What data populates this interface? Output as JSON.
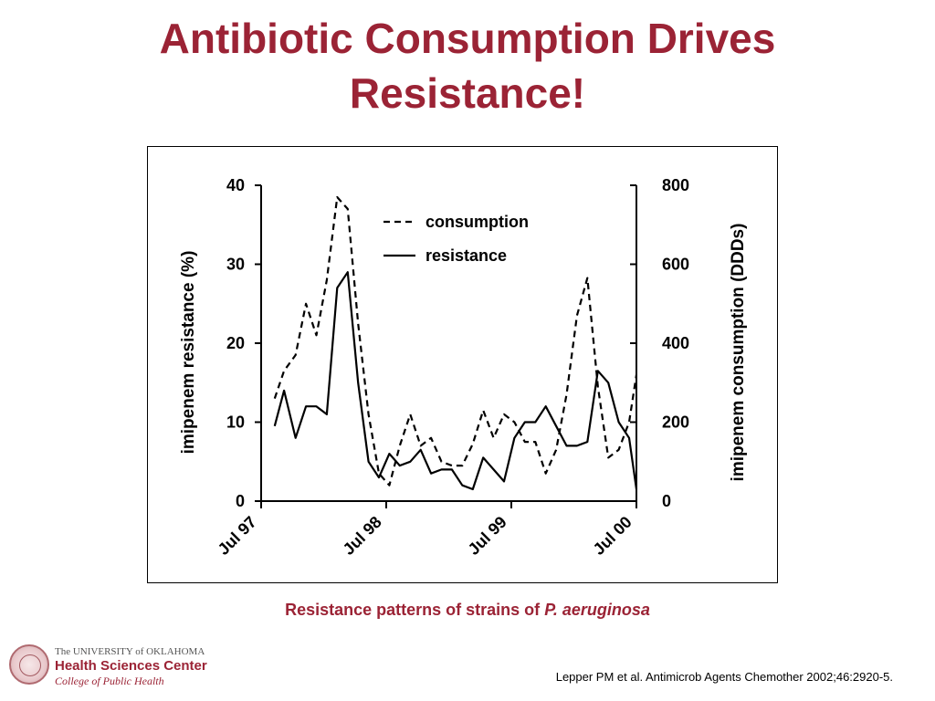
{
  "slide": {
    "title_line1": "Antibiotic Consumption Drives",
    "title_line2": "Resistance!",
    "caption_text": "Resistance patterns of strains of ",
    "caption_italic": "P. aeruginosa",
    "citation": "Lepper PM et al. Antimicrob Agents Chemother 2002;46:2920-5.",
    "title_color": "#9b2335"
  },
  "logo": {
    "line1": "The UNIVERSITY of OKLAHOMA",
    "line2": "Health Sciences Center",
    "line3": "College of Public Health"
  },
  "chart_data": {
    "type": "line",
    "title": "",
    "xlabel": "",
    "ylabel": "imipenem resistance (%)",
    "y2label": "imipenem consumption (DDDs)",
    "x_ticks": [
      "Jul 97",
      "Jul 98",
      "Jul 99",
      "Jul 00"
    ],
    "x_tick_months": [
      0,
      12,
      24,
      36
    ],
    "xlim_months": [
      0,
      36
    ],
    "ylim": [
      0,
      40
    ],
    "y_ticks": [
      0,
      10,
      20,
      30,
      40
    ],
    "y2lim": [
      0,
      800
    ],
    "y2_ticks": [
      0,
      200,
      400,
      600,
      800
    ],
    "grid": false,
    "legend_position": "top-center",
    "series": [
      {
        "name": "consumption",
        "axis": "right",
        "style": "dashed",
        "x": [
          1.3,
          2.2,
          3.3,
          4.3,
          5.3,
          6.3,
          7.3,
          8.3,
          9.3,
          10.3,
          11.3,
          12.3,
          13.3,
          14.3,
          15.3,
          16.3,
          17.3,
          18.3,
          19.3,
          20.3,
          21.3,
          22.3,
          23.3,
          24.3,
          25.3,
          26.3,
          27.3,
          28.3,
          29.3,
          30.3,
          31.3,
          32.3,
          33.3,
          34.3,
          35.3,
          36.0
        ],
        "values": [
          260,
          330,
          370,
          500,
          420,
          560,
          770,
          740,
          450,
          220,
          70,
          40,
          140,
          220,
          140,
          160,
          100,
          90,
          90,
          145,
          230,
          160,
          220,
          200,
          150,
          150,
          70,
          130,
          270,
          470,
          565,
          290,
          110,
          130,
          200,
          320
        ]
      },
      {
        "name": "resistance",
        "axis": "left",
        "style": "solid",
        "x": [
          1.3,
          2.2,
          3.3,
          4.3,
          5.3,
          6.3,
          7.3,
          8.3,
          9.3,
          10.3,
          11.3,
          12.3,
          13.3,
          14.3,
          15.3,
          16.3,
          17.3,
          18.3,
          19.3,
          20.3,
          21.3,
          22.3,
          23.3,
          24.3,
          25.3,
          26.3,
          27.3,
          28.3,
          29.3,
          30.3,
          31.3,
          32.3,
          33.3,
          34.3,
          35.3,
          36.0
        ],
        "values": [
          9.5,
          14,
          8,
          12,
          12,
          11,
          27,
          29,
          15,
          5,
          3,
          6,
          4.5,
          5,
          6.5,
          3.5,
          4,
          4,
          2,
          1.5,
          5.5,
          4,
          2.5,
          8,
          10,
          10,
          12,
          9.5,
          7,
          7,
          7.5,
          16.5,
          15,
          10,
          8,
          1.5
        ]
      }
    ]
  }
}
